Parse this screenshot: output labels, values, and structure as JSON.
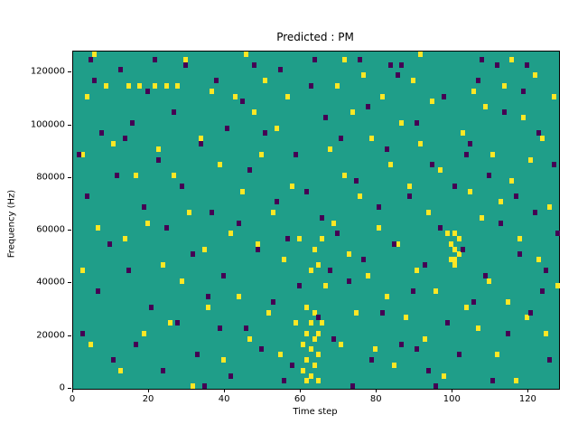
{
  "figure": {
    "title": "Predicted : PM",
    "xlabel": "Time step",
    "ylabel": "Frequency (Hz)"
  },
  "chart_data": {
    "type": "heatmap",
    "title": "Predicted : PM",
    "xlabel": "Time step",
    "ylabel": "Frequency (Hz)",
    "x_range": [
      0,
      128
    ],
    "y_range": [
      0,
      128000
    ],
    "x_ticks": [
      0,
      20,
      40,
      60,
      80,
      100,
      120
    ],
    "y_ticks": [
      0,
      20000,
      40000,
      60000,
      80000,
      100000,
      120000
    ],
    "grid": {
      "time_steps": 128,
      "freq_bins": 64,
      "freq_bin_hz": 2000,
      "gridlines": false
    },
    "legend": "none",
    "colors": {
      "background_value": "#1f9e89",
      "high_value": "#fde725",
      "low_value": "#440154"
    },
    "yellow_cells": [
      [
        2,
        22
      ],
      [
        3,
        55
      ],
      [
        4,
        8
      ],
      [
        6,
        30
      ],
      [
        8,
        57
      ],
      [
        10,
        46
      ],
      [
        12,
        3
      ],
      [
        13,
        28
      ],
      [
        14,
        57
      ],
      [
        16,
        40
      ],
      [
        17,
        57
      ],
      [
        18,
        10
      ],
      [
        19,
        31
      ],
      [
        21,
        57
      ],
      [
        22,
        45
      ],
      [
        23,
        23
      ],
      [
        24,
        57
      ],
      [
        25,
        12
      ],
      [
        26,
        40
      ],
      [
        27,
        57
      ],
      [
        28,
        20
      ],
      [
        30,
        33
      ],
      [
        31,
        0
      ],
      [
        33,
        47
      ],
      [
        34,
        26
      ],
      [
        35,
        15
      ],
      [
        36,
        56
      ],
      [
        38,
        42
      ],
      [
        39,
        5
      ],
      [
        41,
        29
      ],
      [
        42,
        55
      ],
      [
        43,
        17
      ],
      [
        44,
        37
      ],
      [
        46,
        9
      ],
      [
        47,
        52
      ],
      [
        48,
        27
      ],
      [
        49,
        44
      ],
      [
        50,
        58
      ],
      [
        51,
        14
      ],
      [
        52,
        33
      ],
      [
        53,
        49
      ],
      [
        54,
        6
      ],
      [
        55,
        24
      ],
      [
        56,
        55
      ],
      [
        57,
        38
      ],
      [
        58,
        12
      ],
      [
        59,
        28
      ],
      [
        60,
        3
      ],
      [
        60,
        8
      ],
      [
        61,
        1
      ],
      [
        61,
        5
      ],
      [
        61,
        10
      ],
      [
        62,
        2
      ],
      [
        62,
        7
      ],
      [
        62,
        22
      ],
      [
        63,
        4
      ],
      [
        63,
        9
      ],
      [
        63,
        26
      ],
      [
        64,
        1
      ],
      [
        64,
        6
      ],
      [
        64,
        23
      ],
      [
        65,
        12
      ],
      [
        65,
        28
      ],
      [
        66,
        19
      ],
      [
        67,
        45
      ],
      [
        68,
        31
      ],
      [
        69,
        57
      ],
      [
        70,
        8
      ],
      [
        71,
        40
      ],
      [
        72,
        25
      ],
      [
        73,
        52
      ],
      [
        74,
        14
      ],
      [
        75,
        36
      ],
      [
        76,
        59
      ],
      [
        77,
        21
      ],
      [
        78,
        47
      ],
      [
        79,
        7
      ],
      [
        80,
        30
      ],
      [
        81,
        55
      ],
      [
        82,
        17
      ],
      [
        83,
        42
      ],
      [
        84,
        4
      ],
      [
        85,
        27
      ],
      [
        86,
        50
      ],
      [
        87,
        13
      ],
      [
        88,
        38
      ],
      [
        89,
        58
      ],
      [
        90,
        22
      ],
      [
        91,
        46
      ],
      [
        92,
        9
      ],
      [
        93,
        33
      ],
      [
        94,
        54
      ],
      [
        95,
        18
      ],
      [
        96,
        41
      ],
      [
        97,
        2
      ],
      [
        98,
        29
      ],
      [
        99,
        24
      ],
      [
        99,
        27
      ],
      [
        100,
        23
      ],
      [
        100,
        26
      ],
      [
        100,
        29
      ],
      [
        101,
        25
      ],
      [
        101,
        28
      ],
      [
        102,
        48
      ],
      [
        103,
        15
      ],
      [
        104,
        37
      ],
      [
        105,
        56
      ],
      [
        106,
        11
      ],
      [
        107,
        32
      ],
      [
        108,
        53
      ],
      [
        109,
        20
      ],
      [
        110,
        44
      ],
      [
        111,
        6
      ],
      [
        112,
        35
      ],
      [
        113,
        57
      ],
      [
        114,
        16
      ],
      [
        115,
        39
      ],
      [
        116,
        1
      ],
      [
        117,
        28
      ],
      [
        118,
        51
      ],
      [
        119,
        13
      ],
      [
        120,
        43
      ],
      [
        121,
        59
      ],
      [
        122,
        24
      ],
      [
        123,
        47
      ],
      [
        124,
        10
      ],
      [
        125,
        34
      ],
      [
        126,
        55
      ],
      [
        127,
        19
      ],
      [
        5,
        63
      ],
      [
        29,
        62
      ],
      [
        45,
        63
      ],
      [
        71,
        62
      ],
      [
        91,
        63
      ],
      [
        115,
        62
      ],
      [
        2,
        44
      ],
      [
        62,
        12
      ],
      [
        63,
        14
      ],
      [
        64,
        10
      ],
      [
        61,
        15
      ],
      [
        100,
        24
      ]
    ],
    "purple_cells": [
      [
        1,
        44
      ],
      [
        2,
        10
      ],
      [
        3,
        36
      ],
      [
        5,
        58
      ],
      [
        6,
        18
      ],
      [
        7,
        48
      ],
      [
        9,
        27
      ],
      [
        10,
        5
      ],
      [
        11,
        40
      ],
      [
        12,
        60
      ],
      [
        14,
        22
      ],
      [
        15,
        50
      ],
      [
        16,
        8
      ],
      [
        18,
        34
      ],
      [
        19,
        56
      ],
      [
        20,
        15
      ],
      [
        22,
        43
      ],
      [
        23,
        3
      ],
      [
        24,
        30
      ],
      [
        26,
        52
      ],
      [
        27,
        12
      ],
      [
        28,
        38
      ],
      [
        29,
        61
      ],
      [
        31,
        25
      ],
      [
        32,
        6
      ],
      [
        33,
        46
      ],
      [
        35,
        17
      ],
      [
        36,
        33
      ],
      [
        37,
        58
      ],
      [
        39,
        21
      ],
      [
        40,
        49
      ],
      [
        41,
        2
      ],
      [
        43,
        31
      ],
      [
        44,
        54
      ],
      [
        45,
        11
      ],
      [
        46,
        41
      ],
      [
        48,
        26
      ],
      [
        49,
        7
      ],
      [
        50,
        48
      ],
      [
        52,
        16
      ],
      [
        53,
        35
      ],
      [
        54,
        60
      ],
      [
        56,
        28
      ],
      [
        57,
        4
      ],
      [
        58,
        44
      ],
      [
        59,
        19
      ],
      [
        61,
        37
      ],
      [
        62,
        57
      ],
      [
        64,
        13
      ],
      [
        65,
        32
      ],
      [
        66,
        51
      ],
      [
        68,
        9
      ],
      [
        69,
        29
      ],
      [
        70,
        47
      ],
      [
        72,
        20
      ],
      [
        73,
        0
      ],
      [
        74,
        39
      ],
      [
        76,
        24
      ],
      [
        77,
        53
      ],
      [
        78,
        5
      ],
      [
        80,
        34
      ],
      [
        81,
        14
      ],
      [
        82,
        45
      ],
      [
        84,
        27
      ],
      [
        85,
        59
      ],
      [
        86,
        8
      ],
      [
        88,
        36
      ],
      [
        89,
        18
      ],
      [
        90,
        50
      ],
      [
        92,
        23
      ],
      [
        93,
        3
      ],
      [
        94,
        42
      ],
      [
        96,
        30
      ],
      [
        97,
        55
      ],
      [
        98,
        12
      ],
      [
        100,
        38
      ],
      [
        101,
        6
      ],
      [
        102,
        26
      ],
      [
        104,
        46
      ],
      [
        105,
        16
      ],
      [
        106,
        58
      ],
      [
        108,
        21
      ],
      [
        109,
        40
      ],
      [
        110,
        1
      ],
      [
        112,
        31
      ],
      [
        113,
        52
      ],
      [
        114,
        10
      ],
      [
        116,
        36
      ],
      [
        117,
        25
      ],
      [
        118,
        56
      ],
      [
        120,
        14
      ],
      [
        121,
        33
      ],
      [
        122,
        48
      ],
      [
        124,
        22
      ],
      [
        125,
        5
      ],
      [
        126,
        42
      ],
      [
        127,
        29
      ],
      [
        4,
        62
      ],
      [
        21,
        62
      ],
      [
        47,
        61
      ],
      [
        63,
        62
      ],
      [
        83,
        61
      ],
      [
        107,
        62
      ],
      [
        119,
        61
      ],
      [
        34,
        0
      ],
      [
        55,
        1
      ],
      [
        75,
        62
      ],
      [
        95,
        0
      ],
      [
        111,
        61
      ],
      [
        86,
        61
      ],
      [
        13,
        47
      ],
      [
        38,
        11
      ],
      [
        67,
        22
      ],
      [
        90,
        7
      ],
      [
        103,
        44
      ],
      [
        123,
        18
      ]
    ]
  }
}
